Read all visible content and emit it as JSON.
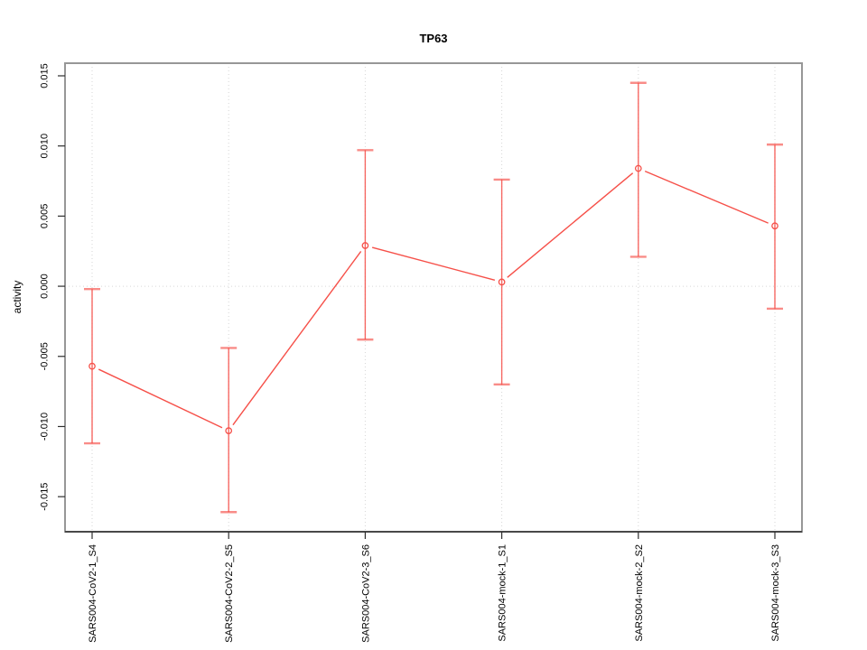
{
  "chart_data": {
    "type": "line",
    "title": "TP63",
    "xlabel": "",
    "ylabel": "activity",
    "categories": [
      "SARS004-CoV2-1_S4",
      "SARS004-CoV2-2_S5",
      "SARS004-CoV2-3_S6",
      "SARS004-mock-1_S1",
      "SARS004-mock-2_S2",
      "SARS004-mock-3_S3"
    ],
    "series": [
      {
        "name": "activity",
        "values": [
          -0.0057,
          -0.0103,
          0.0029,
          0.0003,
          0.0084,
          0.0043
        ],
        "error_low": [
          -0.0112,
          -0.0161,
          -0.0038,
          -0.007,
          0.0021,
          -0.0016
        ],
        "error_high": [
          -0.0002,
          -0.0044,
          0.0097,
          0.0076,
          0.0145,
          0.0101
        ],
        "color": "#f65049",
        "marker": "open-circle",
        "error_bars": true
      }
    ],
    "y_ticks": [
      "-0.015",
      "-0.010",
      "-0.005",
      "0.000",
      "0.005",
      "0.010",
      "0.015"
    ],
    "y_tick_values": [
      -0.015,
      -0.01,
      -0.005,
      0.0,
      0.005,
      0.01,
      0.015
    ],
    "ylim": [
      -0.0175,
      0.0159
    ],
    "grid": {
      "vertical_at_categories": true,
      "horizontal_at_zero": true,
      "style": "dotted",
      "color": "#d6d6d6"
    },
    "legend": "none"
  },
  "colors": {
    "series": "#f65049",
    "plot_border": "#979797",
    "axis": "#2e2e2e",
    "grid": "#d6d6d6",
    "text": "#000000",
    "background": "#ffffff"
  }
}
